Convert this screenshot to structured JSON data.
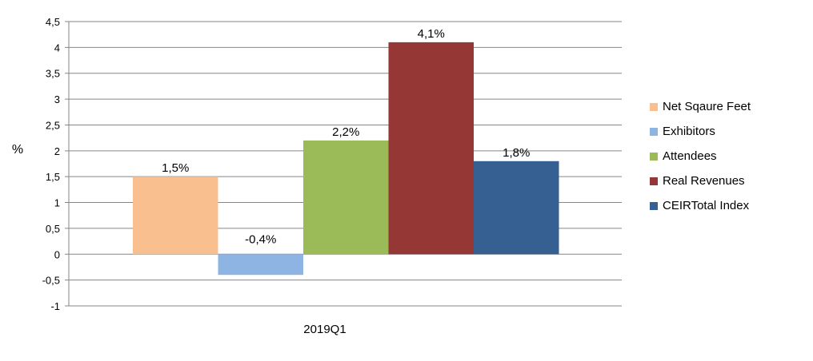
{
  "chart_data": {
    "type": "bar",
    "categories": [
      "2019Q1"
    ],
    "ylabel": "%",
    "ylim": [
      -1,
      4.5
    ],
    "yticks": [
      "-1",
      "-0,5",
      "0",
      "0,5",
      "1",
      "1,5",
      "2",
      "2,5",
      "3",
      "3,5",
      "4",
      "4,5"
    ],
    "ytick_values": [
      -1,
      -0.5,
      0,
      0.5,
      1,
      1.5,
      2,
      2.5,
      3,
      3.5,
      4,
      4.5
    ],
    "grid": true,
    "legend_position": "right",
    "series": [
      {
        "name": "Net Sqaure Feet",
        "values": [
          1.5
        ],
        "label": "1,5%",
        "color": "#F9BF8F"
      },
      {
        "name": "Exhibitors",
        "values": [
          -0.4
        ],
        "label": "-0,4%",
        "color": "#8EB4E3"
      },
      {
        "name": "Attendees",
        "values": [
          2.2
        ],
        "label": "2,2%",
        "color": "#9BBB59"
      },
      {
        "name": "Real Revenues",
        "values": [
          4.1
        ],
        "label": "4,1%",
        "color": "#953735"
      },
      {
        "name": "CEIRTotal Index",
        "values": [
          1.8
        ],
        "label": "1,8%",
        "color": "#376092"
      }
    ]
  }
}
